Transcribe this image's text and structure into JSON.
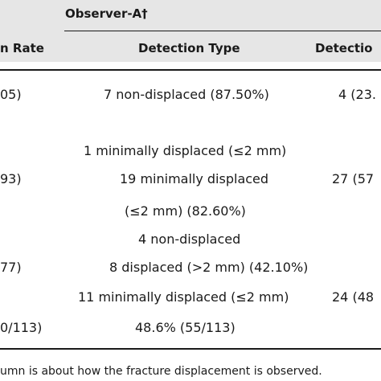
{
  "header": {
    "group_label": "Observer-A†",
    "col_rate": "n Rate",
    "col_type": "Detection Type",
    "col_detection": "Detectio"
  },
  "rows": [
    {
      "rate": "05)",
      "type_lines": [
        "7 non-displaced (87.50%)"
      ],
      "detection": "4 (23."
    },
    {
      "rate": "93)",
      "type_lines": [
        "1 minimally displaced (≤2 mm)",
        "19 minimally displaced",
        "(≤2 mm) (82.60%)"
      ],
      "detection": "27 (57"
    },
    {
      "rate": "77)",
      "type_lines": [
        "4 non-displaced",
        "8 displaced (>2 mm) (42.10%)",
        "11 minimally displaced (≤2 mm)"
      ],
      "detection": "24 (48"
    },
    {
      "rate": "0/113)",
      "type_lines": [
        "48.6% (55/113)"
      ],
      "detection": ""
    }
  ],
  "footnote": "umn is about how the fracture displacement is observed."
}
